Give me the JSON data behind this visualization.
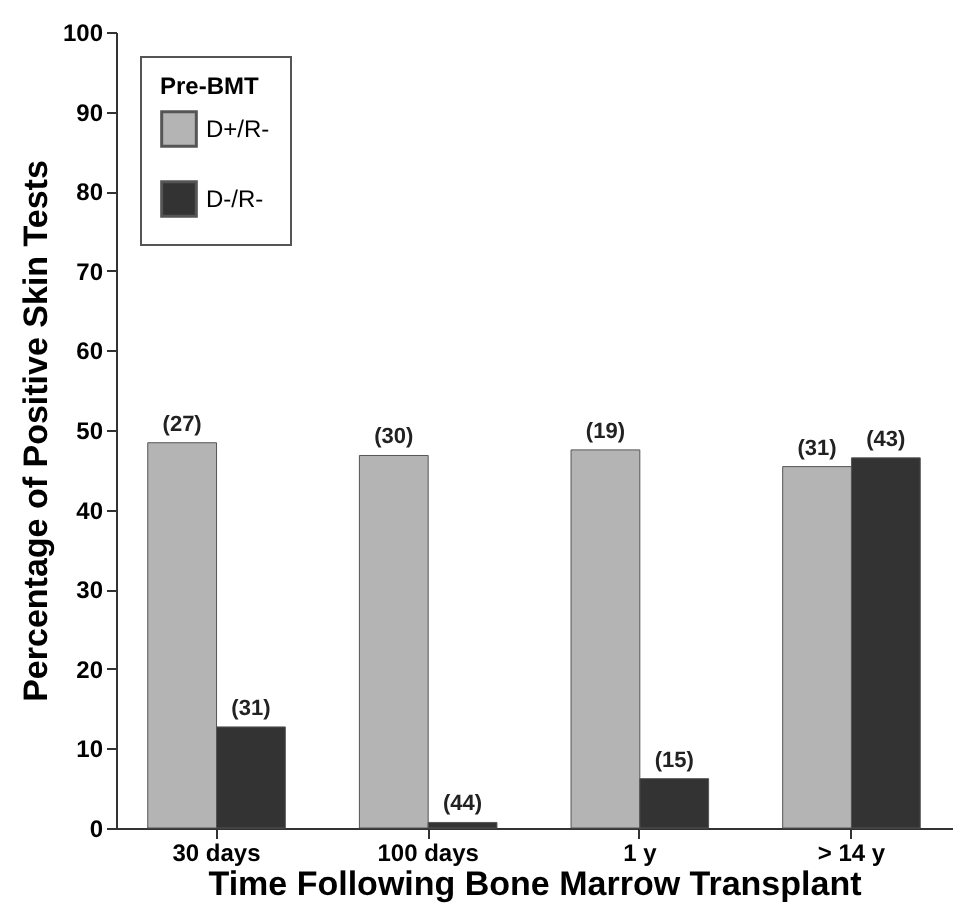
{
  "chart_data": {
    "type": "bar",
    "xlabel": "Time Following Bone Marrow Transplant",
    "ylabel": "Percentage of Positive Skin Tests",
    "legend_title": "Pre-BMT",
    "categories": [
      "30 days",
      "100 days",
      "1 y",
      "> 14 y"
    ],
    "series": [
      {
        "name": "D+/R-",
        "color": "#b4b4b4",
        "values": [
          48.4,
          46.8,
          47.5,
          45.4
        ]
      },
      {
        "name": "D-/R-",
        "color": "#333333",
        "values": [
          12.7,
          0.7,
          6.2,
          46.5
        ]
      }
    ],
    "annotations": [
      {
        "text": "(27)",
        "x": "30 days",
        "y": 48.4
      },
      {
        "text": "(31)",
        "x": "30 days",
        "y": 12.7
      },
      {
        "text": "(30)",
        "x": "100 days",
        "y": 46.8
      },
      {
        "text": "(44)",
        "x": "100 days",
        "y": 0.7
      },
      {
        "text": "(19)",
        "x": "1 y",
        "y": 47.5
      },
      {
        "text": "(15)",
        "x": "1 y",
        "y": 6.2
      },
      {
        "text": "(31)",
        "x": "> 14 y",
        "y": 45.4
      },
      {
        "text": "(43)",
        "x": "> 14 y",
        "y": 46.5
      }
    ],
    "ylim": [
      0,
      100
    ],
    "yticks": [
      0,
      10,
      20,
      30,
      40,
      50,
      60,
      70,
      80,
      90,
      100
    ],
    "grid": false,
    "legend": "top left"
  }
}
